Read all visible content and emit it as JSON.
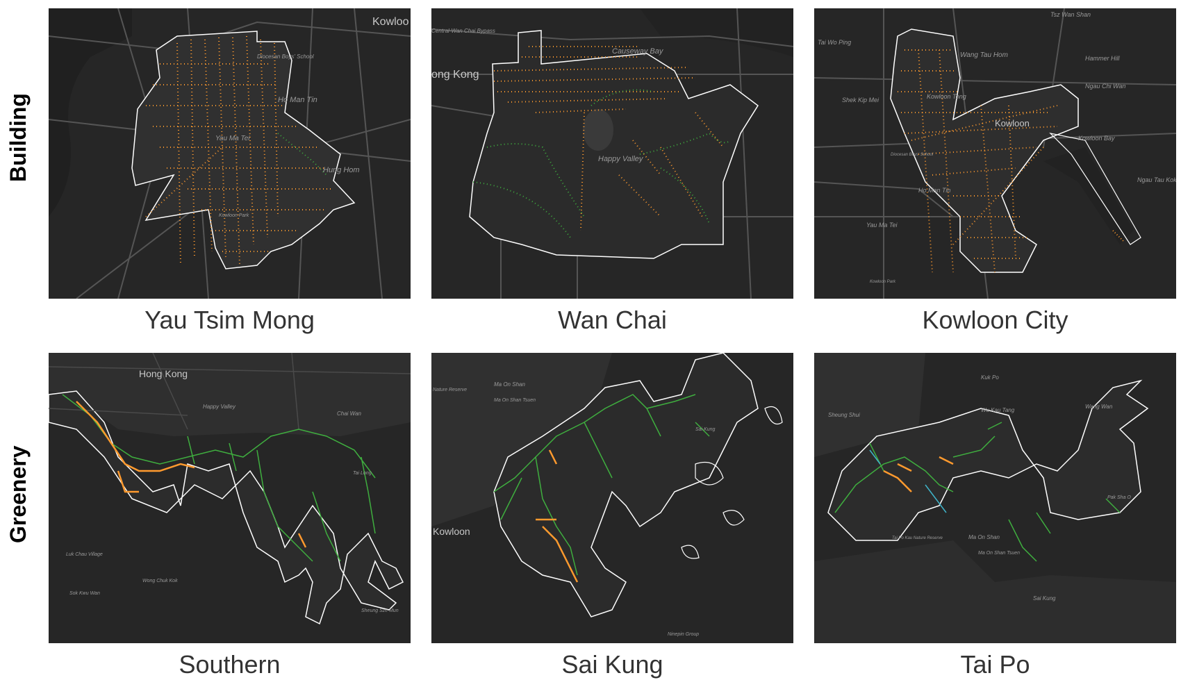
{
  "row_labels": {
    "top": "Building",
    "bottom": "Greenery"
  },
  "panels": [
    {
      "caption": "Yau Tsim Mong",
      "map_labels": [
        "Kowloo",
        "Diocesan Boys' School",
        "Ho Man Tin",
        "Yau Ma Tei",
        "Hung Hom",
        "Kowloon Park"
      ]
    },
    {
      "caption": "Wan Chai",
      "map_labels": [
        "Central-Wan Chai Bypass",
        "Causeway Bay",
        "ong Kong",
        "Happy Valley"
      ]
    },
    {
      "caption": "Kowloon City",
      "map_labels": [
        "Tsz Wan Shan",
        "Tai Wo Ping",
        "Wang Tau Hom",
        "Hammer Hill",
        "Shek Kip Mei",
        "Kowloon Tong",
        "Kowloon",
        "Ngau Chi Wan",
        "Kowloon Bay",
        "Diocesan Boys' School",
        "Ho Man Tin",
        "Ngau Tau Kok",
        "Yau Ma Tei",
        "Kowloon Park"
      ]
    },
    {
      "caption": "Southern",
      "map_labels": [
        "Hong Kong",
        "Happy Valley",
        "Chai Wan",
        "Tai Long",
        "Luk Chau Village",
        "Wong Chuk Kok",
        "Sok Kwu Wan",
        "Sheung Sze Mun"
      ]
    },
    {
      "caption": "Sai Kung",
      "map_labels": [
        "Ma On Shan",
        "Ma On Shan Tsuen",
        "Sai Kung",
        "Kowloon",
        "Nature Reserve",
        "Ninepin Group"
      ]
    },
    {
      "caption": "Tai Po",
      "map_labels": [
        "Kuk Po",
        "Wu Kau Tang",
        "Wang Wan",
        "Sheung Shui",
        "Tai Po Kau Nature Reserve",
        "Ma On Shan",
        "Ma On Shan Tsuen",
        "Sai Kung",
        "Pak Sha O"
      ]
    }
  ],
  "colors": {
    "map_background": "#262626",
    "roads": "#555555",
    "boundary": "#ffffff",
    "building_points": "#ff9a2e",
    "greenery_points": "#3fae3f",
    "water_points": "#3fb3c8"
  }
}
